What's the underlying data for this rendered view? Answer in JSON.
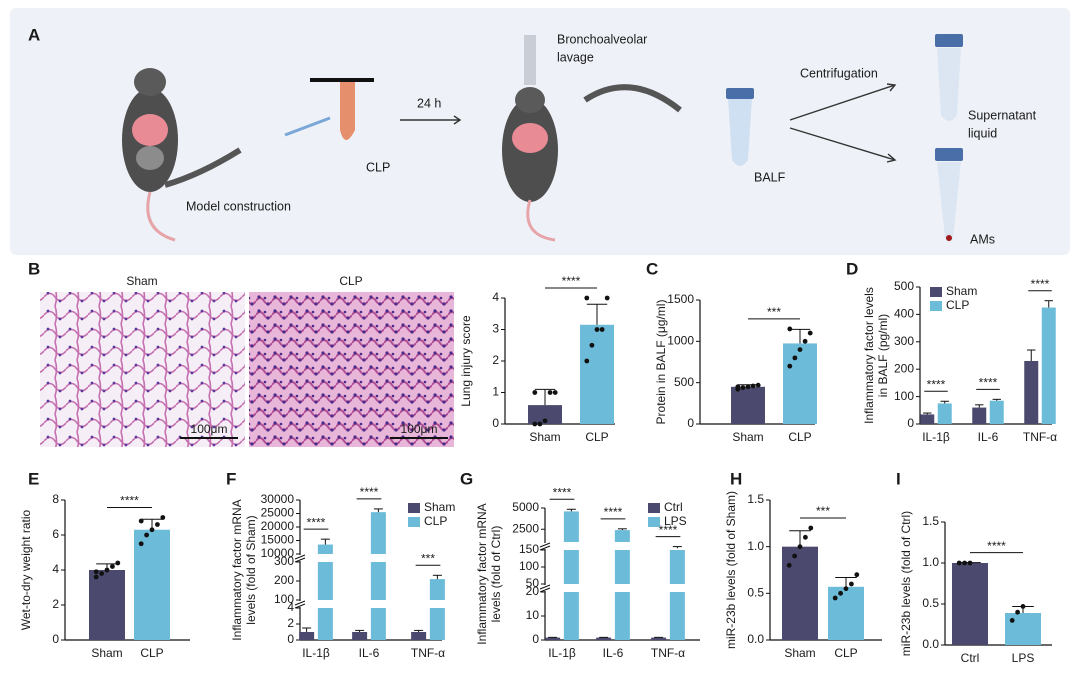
{
  "panel_labels": [
    "A",
    "B",
    "C",
    "D",
    "E",
    "F",
    "G",
    "H",
    "I"
  ],
  "scheme": {
    "lavage": [
      "Bronchoalveolar",
      "lavage"
    ],
    "centrifugation": "Centrifugation",
    "time": "24 h",
    "clp": "CLP",
    "model": "Model construction",
    "balf": "BALF",
    "supernatant": [
      "Supernatant",
      "liquid"
    ],
    "ams": "AMs"
  },
  "histology": {
    "titles": [
      "Sham",
      "CLP"
    ],
    "scale_bar": "100μm"
  },
  "chart_data": [
    {
      "type": "bar",
      "ylabel": "Lung injury score",
      "categories": [
        "Sham",
        "CLP"
      ],
      "values": [
        0.6,
        3.15
      ],
      "errors": [
        0.5,
        0.65
      ],
      "colors": [
        "#4b4a6e",
        "#6cbbd8"
      ],
      "points": [
        [
          0,
          0,
          0.1,
          1,
          1,
          1
        ],
        [
          2,
          2.5,
          3,
          3,
          4,
          4
        ]
      ],
      "ylim": [
        0,
        4
      ],
      "yticks": [
        0,
        1,
        2,
        3,
        4
      ],
      "significance": "****"
    },
    {
      "type": "bar",
      "ylabel": "Protein in BALF (μg/ml)",
      "categories": [
        "Sham",
        "CLP"
      ],
      "values": [
        450,
        975
      ],
      "errors": [
        25,
        170
      ],
      "colors": [
        "#4b4a6e",
        "#6cbbd8"
      ],
      "points": [
        [
          420,
          440,
          450,
          460,
          470,
          450
        ],
        [
          700,
          800,
          900,
          1000,
          1100,
          1150
        ]
      ],
      "ylim": [
        0,
        1500
      ],
      "yticks": [
        0,
        500,
        1000,
        1500
      ],
      "significance": "***"
    },
    {
      "type": "grouped_bar",
      "ylabel": [
        "Inflammatory factor levels",
        "in BALF (pg/ml)"
      ],
      "categories": [
        "IL-1β",
        "IL-6",
        "TNF-α"
      ],
      "series": [
        {
          "name": "Sham",
          "color": "#4b4a6e",
          "values": [
            35,
            60,
            230
          ],
          "errors": [
            5,
            10,
            40
          ]
        },
        {
          "name": "CLP",
          "color": "#6cbbd8",
          "values": [
            75,
            85,
            425
          ],
          "errors": [
            8,
            5,
            25
          ]
        }
      ],
      "ylim": [
        0,
        500
      ],
      "yticks": [
        0,
        100,
        200,
        300,
        400,
        500
      ],
      "significance": [
        "****",
        "****",
        "****"
      ]
    },
    {
      "type": "bar",
      "ylabel": "Wet-to-dry weight ratio",
      "categories": [
        "Sham",
        "CLP"
      ],
      "values": [
        4.0,
        6.3
      ],
      "errors": [
        0.35,
        0.6
      ],
      "colors": [
        "#4b4a6e",
        "#6cbbd8"
      ],
      "points": [
        [
          3.6,
          3.8,
          4,
          4.2,
          4.4,
          3.9
        ],
        [
          5.5,
          6,
          6.3,
          6.6,
          7,
          6.8
        ]
      ],
      "ylim": [
        0,
        8
      ],
      "yticks": [
        0,
        2,
        4,
        6,
        8
      ],
      "significance": "****"
    },
    {
      "type": "broken_bar",
      "ylabel": [
        "Inflammatory factor mRNA",
        "levels (fold of Sham)"
      ],
      "categories": [
        "IL-1β",
        "IL-6",
        "TNF-α"
      ],
      "series": [
        {
          "name": "Sham",
          "color": "#4b4a6e",
          "values": [
            1,
            1,
            1
          ],
          "errors": [
            0.5,
            0.2,
            0.2
          ]
        },
        {
          "name": "CLP",
          "color": "#6cbbd8",
          "values": [
            13500,
            25500,
            210
          ],
          "errors": [
            2000,
            1200,
            20
          ]
        }
      ],
      "segments": [
        {
          "ylim": [
            0,
            4
          ],
          "yticks": [
            0,
            2,
            4
          ]
        },
        {
          "ylim": [
            100,
            300
          ],
          "yticks": [
            100,
            200,
            300
          ]
        },
        {
          "ylim": [
            10000,
            30000
          ],
          "yticks": [
            10000,
            15000,
            20000,
            25000,
            30000
          ]
        }
      ],
      "significance": [
        "****",
        "****",
        "***"
      ]
    },
    {
      "type": "broken_bar",
      "ylabel": [
        "Inflammatory factor mRNA",
        "levels (fold of Ctrl)"
      ],
      "categories": [
        "IL-1β",
        "IL-6",
        "TNF-α"
      ],
      "series": [
        {
          "name": "Ctrl",
          "color": "#4b4a6e",
          "values": [
            1,
            1,
            1
          ],
          "errors": [
            0.1,
            0.1,
            0.1
          ]
        },
        {
          "name": "LPS",
          "color": "#6cbbd8",
          "values": [
            4600,
            2400,
            155
          ],
          "errors": [
            250,
            150,
            5
          ]
        }
      ],
      "segments": [
        {
          "ylim": [
            0,
            20
          ],
          "yticks": [
            0,
            10,
            20
          ]
        },
        {
          "ylim": [
            50,
            150
          ],
          "yticks": [
            50,
            100,
            150
          ]
        },
        {
          "ylim": [
            1000,
            5000
          ],
          "yticks": [
            2500,
            5000
          ]
        }
      ],
      "significance": [
        "****",
        "****",
        "****"
      ]
    },
    {
      "type": "bar",
      "ylabel": "miR-23b levels (fold of Sham)",
      "categories": [
        "Sham",
        "CLP"
      ],
      "values": [
        1.0,
        0.57
      ],
      "errors": [
        0.17,
        0.1
      ],
      "colors": [
        "#4b4a6e",
        "#6cbbd8"
      ],
      "points": [
        [
          0.8,
          0.9,
          1.0,
          1.1,
          1.2
        ],
        [
          0.45,
          0.5,
          0.55,
          0.6,
          0.7
        ]
      ],
      "ylim": [
        0,
        1.5
      ],
      "yticks": [
        {
          "value": 0,
          "label": "0.0"
        },
        {
          "value": 0.5,
          "label": "0.5"
        },
        {
          "value": 1,
          "label": "1.0"
        },
        {
          "value": 1.5,
          "label": "1.5"
        }
      ],
      "significance": "***"
    },
    {
      "type": "bar",
      "ylabel": "miR-23b levels (fold of Ctrl)",
      "categories": [
        "Ctrl",
        "LPS"
      ],
      "values": [
        1.0,
        0.39
      ],
      "errors": [
        0.005,
        0.08
      ],
      "colors": [
        "#4b4a6e",
        "#6cbbd8"
      ],
      "points": [
        [
          1,
          1,
          1
        ],
        [
          0.3,
          0.4,
          0.47
        ]
      ],
      "ylim": [
        0,
        1.5
      ],
      "yticks": [
        {
          "value": 0,
          "label": "0.0"
        },
        {
          "value": 0.5,
          "label": "0.5"
        },
        {
          "value": 1,
          "label": "1.0"
        },
        {
          "value": 1.5,
          "label": "1.5"
        }
      ],
      "significance": "****"
    }
  ]
}
